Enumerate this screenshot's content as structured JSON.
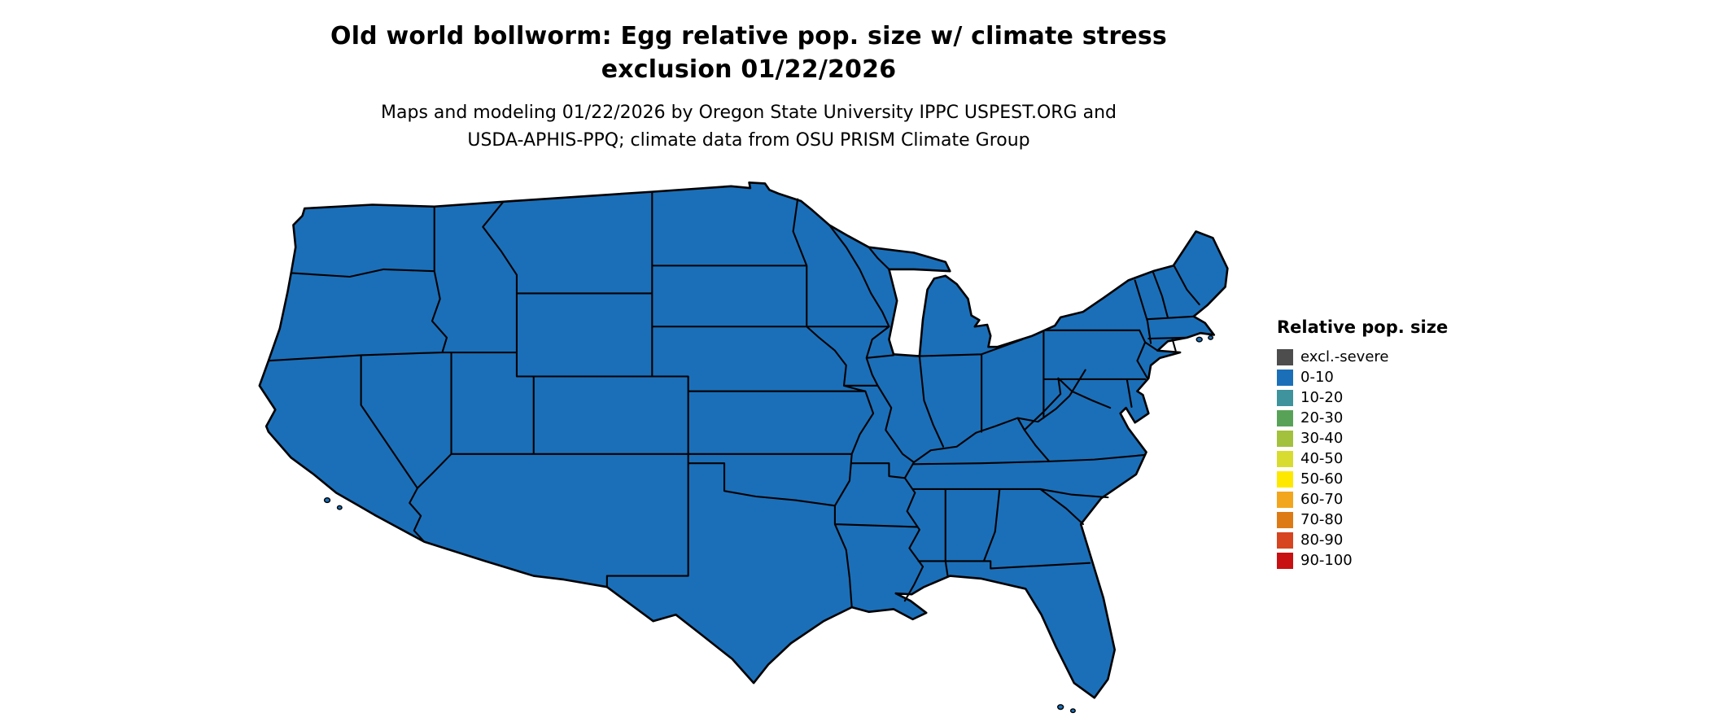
{
  "title": {
    "line1": "Old world bollworm: Egg relative pop. size w/ climate stress",
    "line2": "exclusion 01/22/2026"
  },
  "credits": {
    "line1": "Maps and modeling 01/22/2026 by Oregon State University IPPC USPEST.ORG and",
    "line2": "USDA-APHIS-PPQ; climate data from OSU PRISM Climate Group"
  },
  "legend": {
    "title": "Relative pop. size",
    "items": [
      {
        "label": "excl.-severe",
        "color": "#4d4d4d"
      },
      {
        "label": "0-10",
        "color": "#1b6fb8"
      },
      {
        "label": "10-20",
        "color": "#3f939c"
      },
      {
        "label": "20-30",
        "color": "#58a258"
      },
      {
        "label": "30-40",
        "color": "#a3c13d"
      },
      {
        "label": "40-50",
        "color": "#d8dc30"
      },
      {
        "label": "50-60",
        "color": "#ffe800"
      },
      {
        "label": "60-70",
        "color": "#f2a61d"
      },
      {
        "label": "70-80",
        "color": "#dd7a16"
      },
      {
        "label": "80-90",
        "color": "#d64420"
      },
      {
        "label": "90-100",
        "color": "#c80f12"
      }
    ]
  },
  "map": {
    "region": "contiguous-united-states",
    "fill_color": "#1b6fb8",
    "border_color": "#000000",
    "uniform_value_bin": "0-10"
  }
}
